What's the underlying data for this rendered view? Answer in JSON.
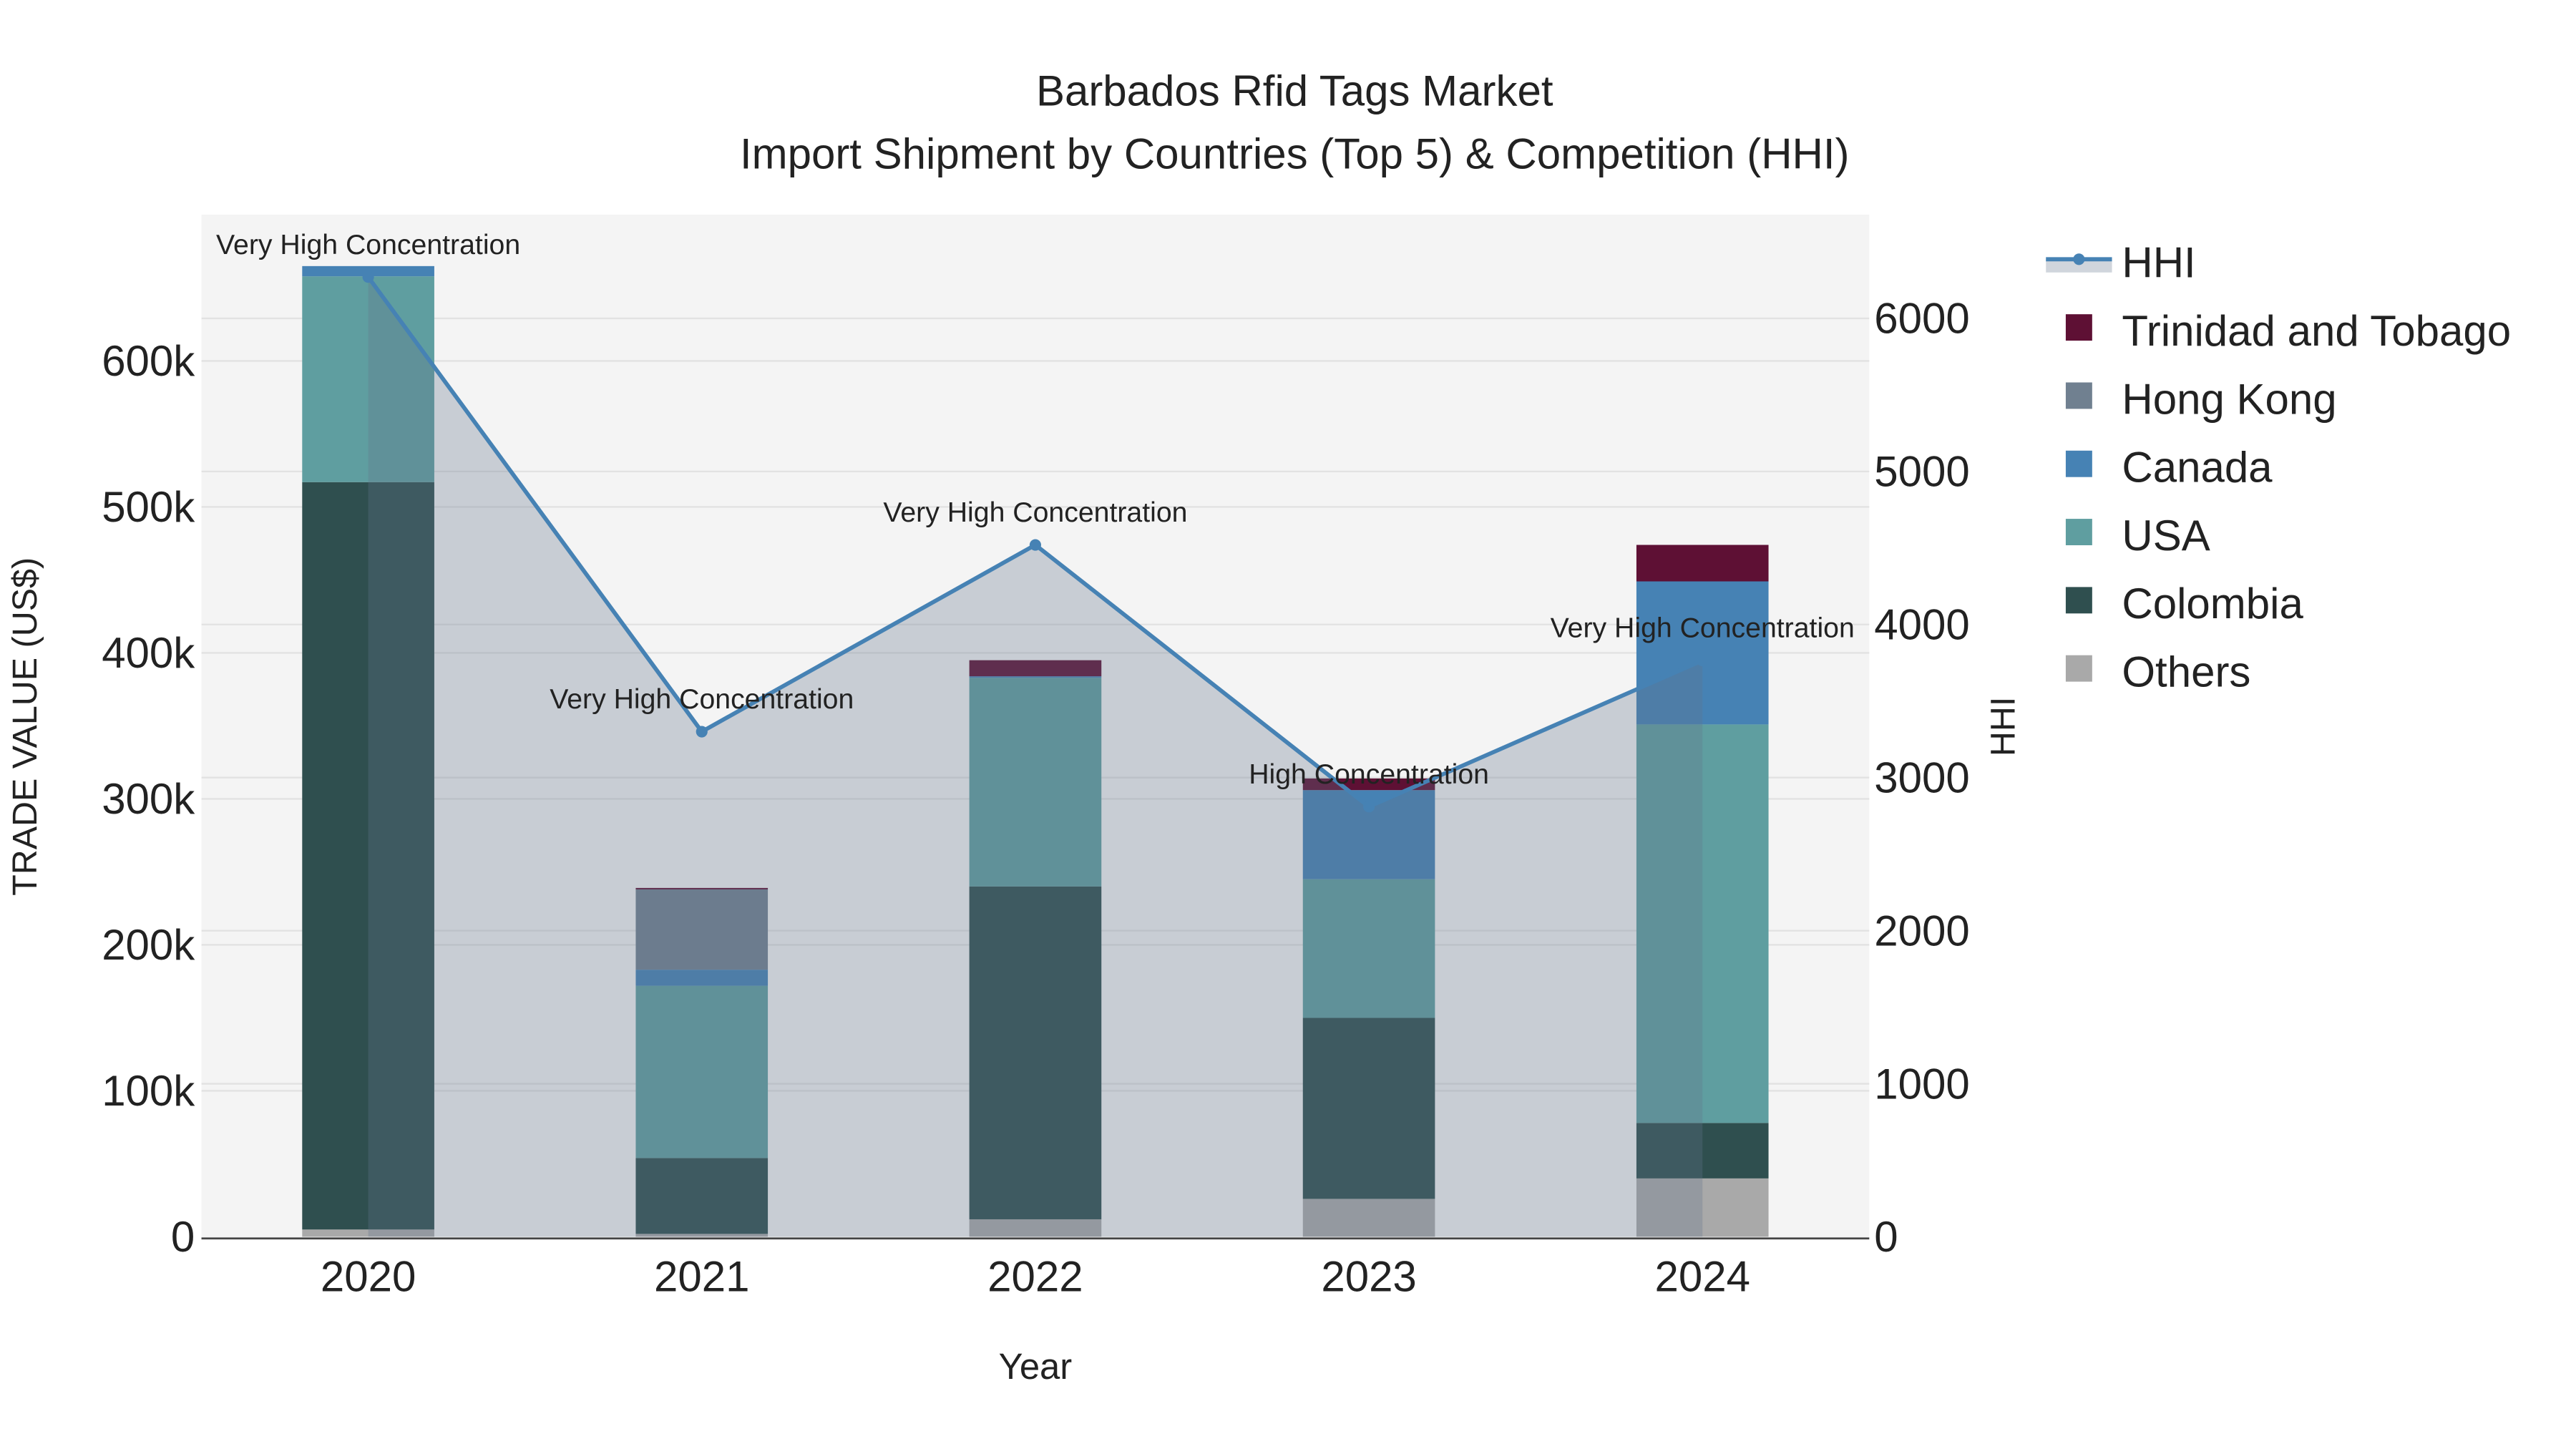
{
  "chart_data": {
    "type": "bar",
    "title": "Barbados Rfid Tags Market",
    "subtitle": "Import Shipment by Countries (Top 5) & Competition (HHI)",
    "xlabel": "Year",
    "ylabel": "TRADE VALUE (US$)",
    "y2label": "HHI",
    "categories": [
      "2020",
      "2021",
      "2022",
      "2023",
      "2024"
    ],
    "ylim": [
      0,
      700000
    ],
    "y2lim": [
      0,
      6600
    ],
    "yticks": [
      0,
      100000,
      200000,
      300000,
      400000,
      500000,
      600000
    ],
    "yticklabels": [
      "0",
      "100k",
      "200k",
      "300k",
      "400k",
      "500k",
      "600k"
    ],
    "y2ticks": [
      0,
      1000,
      2000,
      3000,
      4000,
      5000,
      6000
    ],
    "y2ticklabels": [
      "0",
      "1000",
      "2000",
      "3000",
      "4000",
      "5000",
      "6000"
    ],
    "grid": true,
    "legend_position": "right",
    "series": [
      {
        "name": "Others",
        "color": "#a9a9a9",
        "values": [
          5000,
          2000,
          12000,
          26000,
          40000
        ]
      },
      {
        "name": "Colombia",
        "color": "#2f4f4f",
        "values": [
          512000,
          52000,
          228000,
          124000,
          38000
        ]
      },
      {
        "name": "USA",
        "color": "#5f9ea0",
        "values": [
          141000,
          118000,
          143000,
          95000,
          273000
        ]
      },
      {
        "name": "Canada",
        "color": "#4682b4",
        "values": [
          7000,
          11000,
          1000,
          61000,
          98000
        ]
      },
      {
        "name": "Hong Kong",
        "color": "#708090",
        "values": [
          0,
          55000,
          0,
          0,
          0
        ]
      },
      {
        "name": "Trinidad and Tobago",
        "color": "#5e1034",
        "values": [
          0,
          1000,
          11000,
          8000,
          25000
        ]
      }
    ],
    "hhi": {
      "name": "HHI",
      "color": "#4682b4",
      "values": [
        6270,
        3300,
        4520,
        2810,
        3765
      ],
      "annotations": [
        "Very High Concentration",
        "Very High Concentration",
        "Very High Concentration",
        "High Concentration",
        "Very High Concentration"
      ]
    },
    "legend": [
      "HHI",
      "Trinidad and Tobago",
      "Hong Kong",
      "Canada",
      "USA",
      "Colombia",
      "Others"
    ]
  }
}
